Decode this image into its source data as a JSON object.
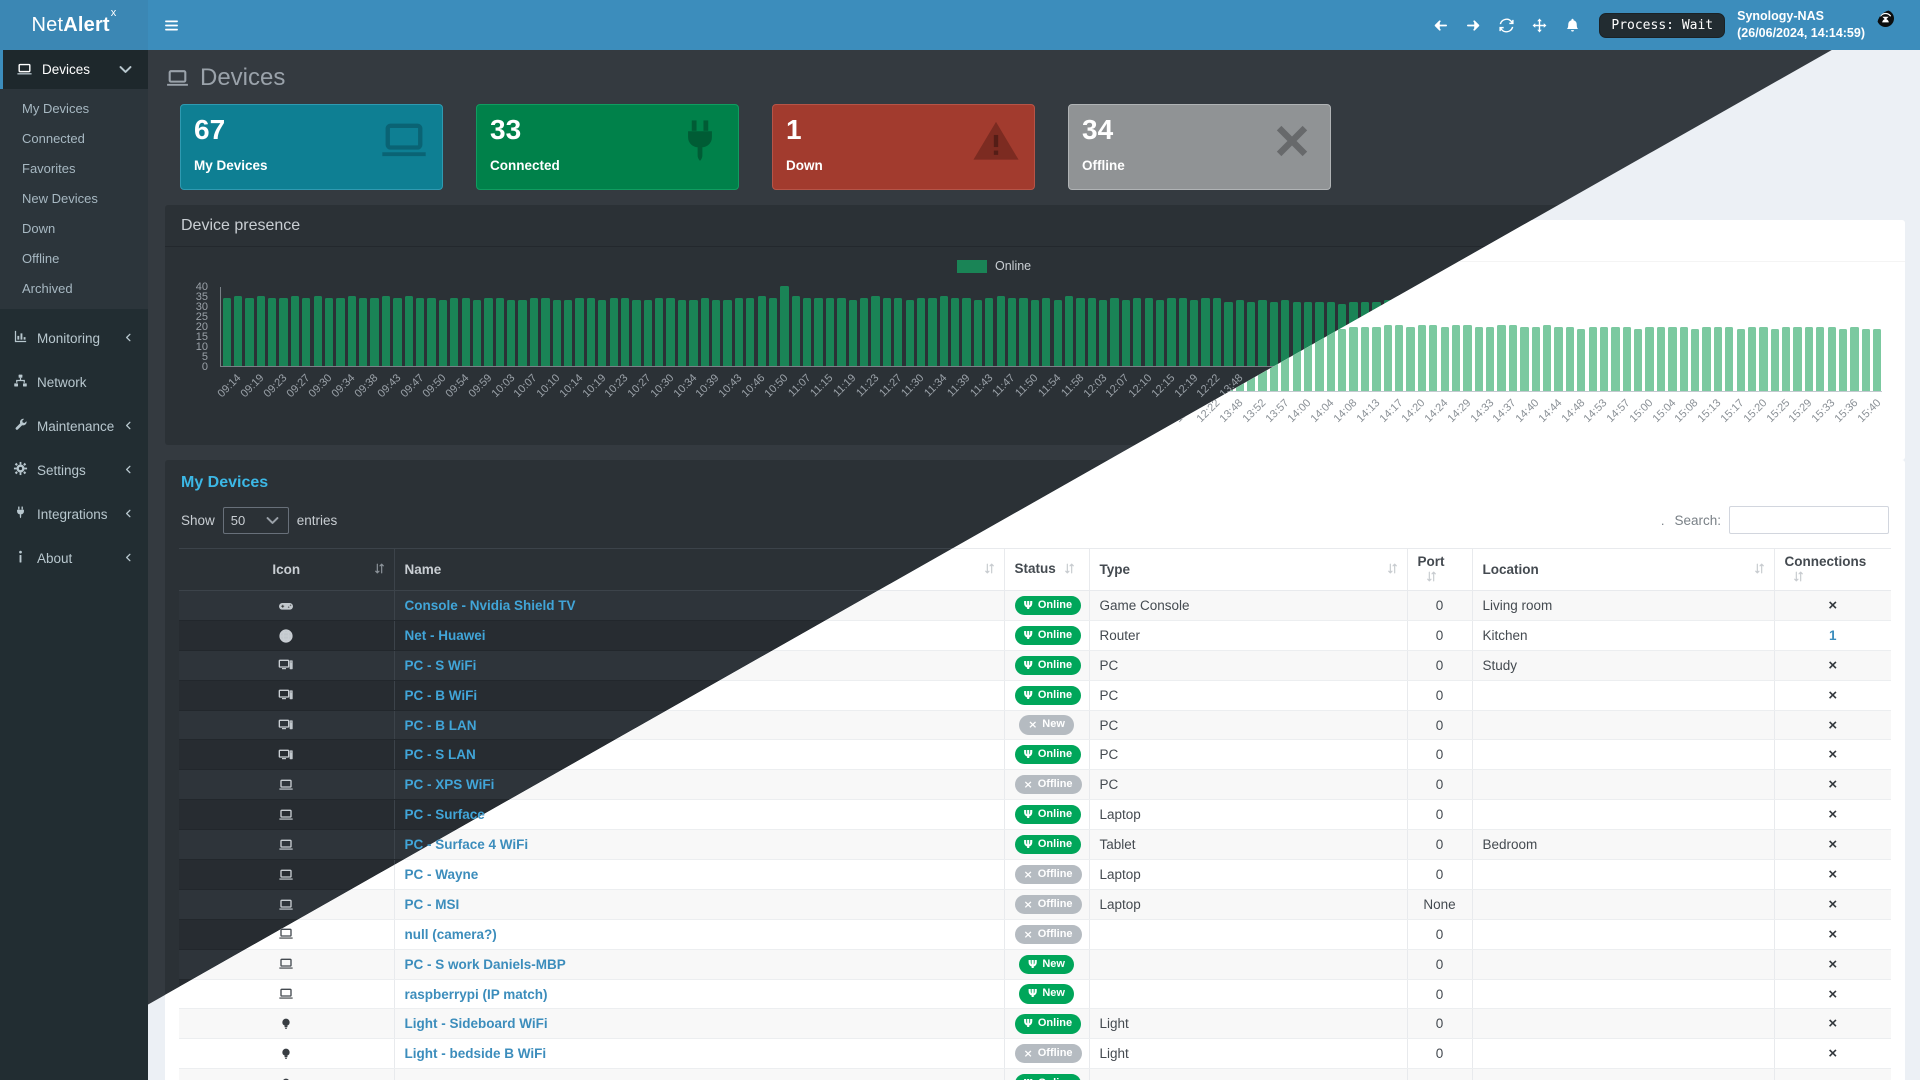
{
  "navbar": {
    "brand": {
      "net": "Net",
      "alert": "Alert",
      "sup": "x"
    },
    "process_status": "Process: Wait",
    "host": "Synology-NAS",
    "datetime": "(26/06/2024, 14:14:59)"
  },
  "sidebar": {
    "devices": {
      "label": "Devices",
      "children": [
        "My Devices",
        "Connected",
        "Favorites",
        "New Devices",
        "Down",
        "Offline",
        "Archived"
      ]
    },
    "items": [
      {
        "label": "Monitoring",
        "icon": "chart",
        "chevron": true
      },
      {
        "label": "Network",
        "icon": "sitemap",
        "chevron": false
      },
      {
        "label": "Maintenance",
        "icon": "wrench",
        "chevron": true
      },
      {
        "label": "Settings",
        "icon": "gear",
        "chevron": true
      },
      {
        "label": "Integrations",
        "icon": "plug",
        "chevron": true
      },
      {
        "label": "About",
        "icon": "info",
        "chevron": true
      }
    ]
  },
  "page": {
    "title": "Devices"
  },
  "stats": [
    {
      "value": "67",
      "label": "My Devices",
      "icon": "laptop",
      "bg": "#0e7f93",
      "border": "#2f9ab1",
      "icon_color": "#0a6374"
    },
    {
      "value": "33",
      "label": "Connected",
      "icon": "plug",
      "bg": "#00814a",
      "border": "#109c60",
      "icon_color": "#005c35"
    },
    {
      "value": "1",
      "label": "Down",
      "icon": "warning",
      "bg": "#a23b2e",
      "border": "#b65447",
      "icon_color": "#7c2b21"
    },
    {
      "value": "34",
      "label": "Offline",
      "icon": "x-mark",
      "bg": "#909395",
      "border": "#b0b3b5",
      "icon_color": "#67696b"
    }
  ],
  "presence": {
    "title": "Device presence",
    "chart_data": {
      "type": "bar",
      "title": "Device presence",
      "legend": [
        "Online"
      ],
      "legend_position": "top-center",
      "bar_color_dark": "#1a8456",
      "bar_color_light": "#7bc9a0",
      "ylim": [
        0,
        40
      ],
      "yticks": [
        40,
        35,
        30,
        25,
        20,
        15,
        10,
        5,
        0
      ],
      "bars_per_category": 2,
      "categories": [
        "09:14",
        "09:19",
        "09:23",
        "09:27",
        "09:30",
        "09:34",
        "09:38",
        "09:43",
        "09:47",
        "09:50",
        "09:54",
        "09:59",
        "10:03",
        "10:07",
        "10:10",
        "10:14",
        "10:19",
        "10:23",
        "10:27",
        "10:30",
        "10:34",
        "10:39",
        "10:43",
        "10:46",
        "10:50",
        "11:07",
        "11:15",
        "11:19",
        "11:23",
        "11:27",
        "11:30",
        "11:34",
        "11:39",
        "11:43",
        "11:47",
        "11:50",
        "11:54",
        "11:58",
        "12:03",
        "12:07",
        "12:10",
        "12:15",
        "12:19",
        "12:22",
        "13:48",
        "13:52",
        "13:57",
        "14:00",
        "14:04",
        "14:08",
        "14:13",
        "14:17",
        "14:20",
        "14:24",
        "14:29",
        "14:33",
        "14:37",
        "14:40",
        "14:44",
        "14:48",
        "14:53",
        "14:57",
        "15:00",
        "15:04",
        "15:08",
        "15:13",
        "15:17",
        "15:20",
        "15:25",
        "15:29",
        "15:33",
        "15:36",
        "15:40"
      ],
      "values": [
        34,
        35,
        34,
        35,
        34,
        34,
        35,
        34,
        35,
        34,
        34,
        35,
        34,
        34,
        35,
        34,
        35,
        34,
        34,
        33,
        34,
        34,
        33,
        34,
        34,
        33,
        33,
        34,
        34,
        33,
        33,
        34,
        34,
        33,
        34,
        34,
        33,
        33,
        34,
        34,
        33,
        33,
        34,
        33,
        33,
        34,
        34,
        35,
        34,
        40,
        35,
        34,
        34,
        34,
        34,
        33,
        34,
        35,
        34,
        34,
        33,
        34,
        34,
        35,
        34,
        34,
        33,
        34,
        35,
        34,
        34,
        33,
        34,
        33,
        35,
        34,
        34,
        33,
        34,
        33,
        34,
        34,
        33,
        34,
        34,
        33,
        34,
        34,
        32,
        33,
        32,
        33,
        32,
        33,
        32,
        32,
        32,
        32,
        31,
        32,
        32,
        32,
        33,
        33,
        32,
        33,
        33,
        32,
        33,
        33,
        32,
        32,
        33,
        33,
        32,
        32,
        33,
        32,
        32,
        31,
        32,
        32,
        32,
        32,
        31,
        32,
        32,
        32,
        32,
        31,
        32,
        32,
        32,
        31,
        32,
        32,
        31,
        32,
        32,
        32,
        32,
        32,
        31,
        32,
        31,
        31
      ]
    }
  },
  "devices_table": {
    "title": "My Devices",
    "show_label": "Show",
    "page_size": "50",
    "entries_label": "entries",
    "search_prefix": ".",
    "search_label": "Search:",
    "search_value": "",
    "columns": [
      {
        "label": "Icon",
        "align": "center",
        "sort": "right"
      },
      {
        "label": "Name",
        "align": "left",
        "sort": "right"
      },
      {
        "label": "Status",
        "align": "left",
        "sort": "after"
      },
      {
        "label": "Type",
        "align": "left",
        "sort": "right"
      },
      {
        "label": "Port",
        "align": "left",
        "sort": "after"
      },
      {
        "label": "Location",
        "align": "left",
        "sort": "right"
      },
      {
        "label": "Connections",
        "align": "left",
        "sort": "after"
      }
    ],
    "statuses": {
      "online": {
        "label": "Online",
        "kind": "ok",
        "icon": "plug"
      },
      "new": {
        "label": "New",
        "kind": "ok",
        "icon": "plug"
      },
      "new_gray": {
        "label": "New",
        "kind": "off",
        "icon": "x"
      },
      "offline": {
        "label": "Offline",
        "kind": "off",
        "icon": "x"
      }
    },
    "rows": [
      {
        "icon": "gamepad",
        "name": "Console - Nvidia Shield TV",
        "status": "online",
        "type": "Game Console",
        "port": "0",
        "location": "Living room",
        "conn": "x"
      },
      {
        "icon": "globe",
        "name": "Net - Huawei",
        "status": "online",
        "type": "Router",
        "port": "0",
        "location": "Kitchen",
        "conn": "1"
      },
      {
        "icon": "desktop",
        "name": "PC - S WiFi",
        "status": "online",
        "type": "PC",
        "port": "0",
        "location": "Study",
        "conn": "x"
      },
      {
        "icon": "desktop",
        "name": "PC - B WiFi",
        "status": "online",
        "type": "PC",
        "port": "0",
        "location": "",
        "conn": "x"
      },
      {
        "icon": "desktop",
        "name": "PC - B LAN",
        "status": "new_gray",
        "type": "PC",
        "port": "0",
        "location": "",
        "conn": "x"
      },
      {
        "icon": "desktop",
        "name": "PC - S LAN",
        "status": "online",
        "type": "PC",
        "port": "0",
        "location": "",
        "conn": "x"
      },
      {
        "icon": "laptop",
        "name": "PC - XPS WiFi",
        "status": "offline",
        "type": "PC",
        "port": "0",
        "location": "",
        "conn": "x"
      },
      {
        "icon": "laptop",
        "name": "PC - Surface",
        "status": "online",
        "type": "Laptop",
        "port": "0",
        "location": "",
        "conn": "x"
      },
      {
        "icon": "laptop",
        "name": "PC - Surface 4 WiFi",
        "status": "online",
        "type": "Tablet",
        "port": "0",
        "location": "Bedroom",
        "conn": "x"
      },
      {
        "icon": "laptop",
        "name": "PC - Wayne",
        "status": "offline",
        "type": "Laptop",
        "port": "0",
        "location": "",
        "conn": "x"
      },
      {
        "icon": "laptop",
        "name": "PC - MSI",
        "status": "offline",
        "type": "Laptop",
        "port": "None",
        "location": "",
        "conn": "x"
      },
      {
        "icon": "laptop",
        "name": "null (camera?)",
        "status": "offline",
        "type": "",
        "port": "0",
        "location": "",
        "conn": "x"
      },
      {
        "icon": "laptop",
        "name": "PC - S work Daniels-MBP",
        "status": "new",
        "type": "",
        "port": "0",
        "location": "",
        "conn": "x"
      },
      {
        "icon": "laptop",
        "name": "raspberrypi (IP match)",
        "status": "new",
        "type": "",
        "port": "0",
        "location": "",
        "conn": "x"
      },
      {
        "icon": "lightbulb",
        "name": "Light - Sideboard WiFi",
        "status": "online",
        "type": "Light",
        "port": "0",
        "location": "",
        "conn": "x"
      },
      {
        "icon": "lightbulb",
        "name": "Light - bedside B WiFi",
        "status": "offline",
        "type": "Light",
        "port": "0",
        "location": "",
        "conn": "x"
      },
      {
        "icon": "lightbulb",
        "name": "",
        "status": "online",
        "type": "",
        "port": "",
        "location": "",
        "conn": ""
      }
    ]
  }
}
